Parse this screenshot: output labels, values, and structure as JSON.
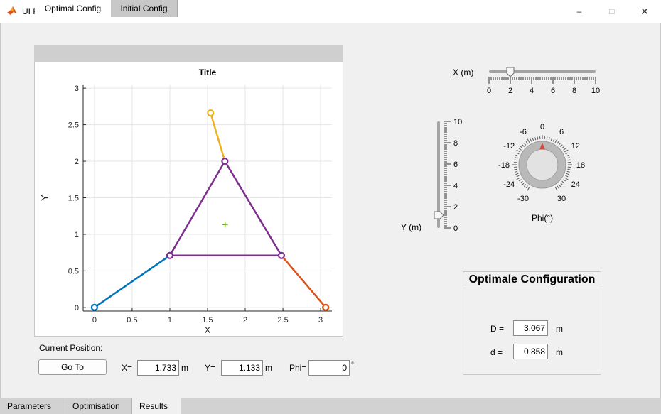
{
  "window": {
    "title": "UI Figure",
    "controls": [
      "–",
      "□",
      "✕"
    ]
  },
  "axes_tabs": [
    {
      "label": "Optimal Config",
      "selected": true
    },
    {
      "label": "Initial Config",
      "selected": false
    }
  ],
  "chart_data": {
    "type": "line",
    "title": "Title",
    "xlabel": "X",
    "ylabel": "Y",
    "xlim": [
      -0.15,
      3.15
    ],
    "ylim": [
      -0.05,
      3.05
    ],
    "xticks": [
      "0",
      "0.5",
      "1",
      "1.5",
      "2",
      "2.5",
      "3"
    ],
    "yticks": [
      "0",
      "0.5",
      "1",
      "1.5",
      "2",
      "2.5",
      "3"
    ],
    "grid": true,
    "series": [
      {
        "color": "#0072bd",
        "points": [
          [
            0,
            0
          ],
          [
            1.0,
            0.71
          ]
        ]
      },
      {
        "color": "#d95319",
        "points": [
          [
            2.48,
            0.71
          ],
          [
            3.067,
            0
          ]
        ]
      },
      {
        "color": "#edb120",
        "points": [
          [
            1.54,
            2.66
          ],
          [
            1.73,
            2.0
          ]
        ]
      },
      {
        "color": "#7e2f8e",
        "points": [
          [
            1.0,
            0.71
          ],
          [
            2.48,
            0.71
          ],
          [
            1.73,
            2.0
          ],
          [
            1.0,
            0.71
          ]
        ]
      }
    ],
    "markers": [
      {
        "color": "#0072bd",
        "x": 0,
        "y": 0
      },
      {
        "color": "#d95319",
        "x": 3.067,
        "y": 0
      },
      {
        "color": "#edb120",
        "x": 1.54,
        "y": 2.66
      },
      {
        "color": "#7e2f8e",
        "x": 1.0,
        "y": 0.71
      },
      {
        "color": "#7e2f8e",
        "x": 2.48,
        "y": 0.71
      },
      {
        "color": "#7e2f8e",
        "x": 1.73,
        "y": 2.0
      }
    ],
    "center_marker": {
      "color": "#77ac30",
      "x": 1.733,
      "y": 1.133
    }
  },
  "position": {
    "heading": "Current Position:",
    "goto_label": "Go To",
    "x_label": "X=",
    "x_value": "1.733",
    "x_unit": "m",
    "y_label": "Y=",
    "y_value": "1.133",
    "y_unit": "m",
    "phi_label": "Phi=",
    "phi_value": "0",
    "phi_unit": "°"
  },
  "x_slider": {
    "label": "X (m)",
    "value": 2,
    "min": 0,
    "max": 10,
    "tick_labels": [
      "0",
      "2",
      "4",
      "6",
      "8",
      "10"
    ]
  },
  "y_slider": {
    "label": "Y (m)",
    "value": 0,
    "min": 0,
    "max": 10,
    "tick_labels": [
      "0",
      "2",
      "4",
      "6",
      "8",
      "10"
    ]
  },
  "phi_knob": {
    "label": "Phi(°)",
    "value": 0,
    "min": -30,
    "max": 30,
    "tick_labels": [
      "-30",
      "-24",
      "-18",
      "-12",
      "-6",
      "0",
      "6",
      "12",
      "18",
      "24",
      "30"
    ]
  },
  "config": {
    "title": "Optimale Configuration",
    "D_label": "D =",
    "D_value": "3.067",
    "D_unit": "m",
    "d_label": "d =",
    "d_value": "0.858",
    "d_unit": "m"
  },
  "bottom_tabs": [
    {
      "label": "Parameters",
      "selected": false
    },
    {
      "label": "Optimisation",
      "selected": false
    },
    {
      "label": "Results",
      "selected": true
    }
  ]
}
